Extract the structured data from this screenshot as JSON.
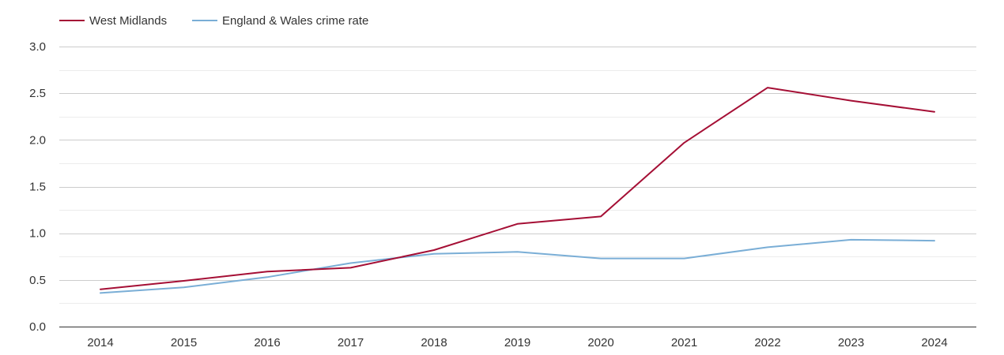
{
  "chart_data": {
    "type": "line",
    "title": "",
    "xlabel": "",
    "ylabel": "",
    "x": [
      "2014",
      "2015",
      "2016",
      "2017",
      "2018",
      "2019",
      "2020",
      "2021",
      "2022",
      "2023",
      "2024"
    ],
    "ylim": [
      0,
      3
    ],
    "yticks": [
      "0.0",
      "0.5",
      "1.0",
      "1.5",
      "2.0",
      "2.5",
      "3.0"
    ],
    "ytick_values": [
      0,
      0.5,
      1,
      1.5,
      2,
      2.5,
      3
    ],
    "grid": true,
    "legend_position": "top-left",
    "series": [
      {
        "name": "West Midlands",
        "color": "#a50f35",
        "values": [
          0.4,
          0.49,
          0.59,
          0.63,
          0.82,
          1.1,
          1.18,
          1.97,
          2.56,
          2.42,
          2.3
        ]
      },
      {
        "name": "England & Wales crime rate",
        "color": "#7aaed6",
        "values": [
          0.36,
          0.42,
          0.53,
          0.68,
          0.78,
          0.8,
          0.73,
          0.73,
          0.85,
          0.93,
          0.92
        ]
      }
    ]
  }
}
